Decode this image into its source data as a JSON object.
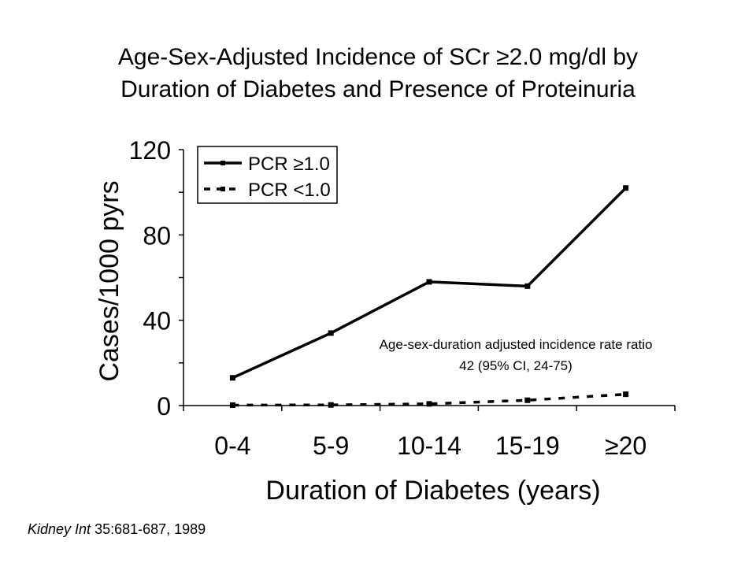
{
  "slide": {
    "title_line1": "Age-Sex-Adjusted Incidence of SCr ≥2.0 mg/dl by",
    "title_line2": "Duration of Diabetes and Presence of Proteinuria",
    "citation_journal": "Kidney Int",
    "citation_rest": " 35:681-687, 1989"
  },
  "chart_data": {
    "type": "line",
    "categories": [
      "0-4",
      "5-9",
      "10-14",
      "15-19",
      "≥20"
    ],
    "series": [
      {
        "name": "PCR ≥1.0",
        "values": [
          13,
          34,
          58,
          56,
          102
        ],
        "style": "solid",
        "color": "#000000"
      },
      {
        "name": "PCR <1.0",
        "values": [
          0.2,
          0.3,
          0.8,
          2.5,
          5.3
        ],
        "style": "dashed",
        "color": "#000000"
      }
    ],
    "xlabel": "Duration of Diabetes (years)",
    "ylabel": "Cases/1000 pyrs",
    "ylim": [
      0,
      120
    ],
    "yticks": [
      0,
      40,
      80,
      120
    ],
    "annotation_line1": "Age-sex-duration adjusted incidence rate ratio",
    "annotation_line2": "42 (95% CI, 24-75)",
    "legend_position": "top-left",
    "grid": false
  }
}
